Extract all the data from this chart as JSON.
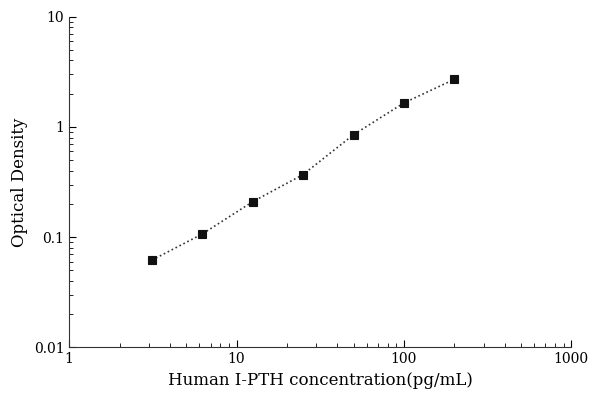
{
  "x": [
    3.125,
    6.25,
    12.5,
    25,
    50,
    100,
    200
  ],
  "y": [
    0.062,
    0.107,
    0.21,
    0.37,
    0.85,
    1.65,
    2.7
  ],
  "xlabel": "Human I-PTH concentration(pg/mL)",
  "ylabel": "Optical Density",
  "xlim": [
    1,
    1000
  ],
  "ylim": [
    0.01,
    10
  ],
  "line_color": "#333333",
  "marker": "s",
  "marker_color": "#111111",
  "marker_size": 6,
  "line_style": ":",
  "line_width": 1.2,
  "background_color": "#ffffff",
  "xlabel_fontsize": 12,
  "ylabel_fontsize": 12,
  "tick_labelsize": 10,
  "ytick_labels": [
    "0.01",
    "0.1",
    "1",
    "10"
  ],
  "ytick_values": [
    0.01,
    0.1,
    1,
    10
  ],
  "xtick_labels": [
    "1",
    "10",
    "100",
    "1000"
  ],
  "xtick_values": [
    1,
    10,
    100,
    1000
  ]
}
